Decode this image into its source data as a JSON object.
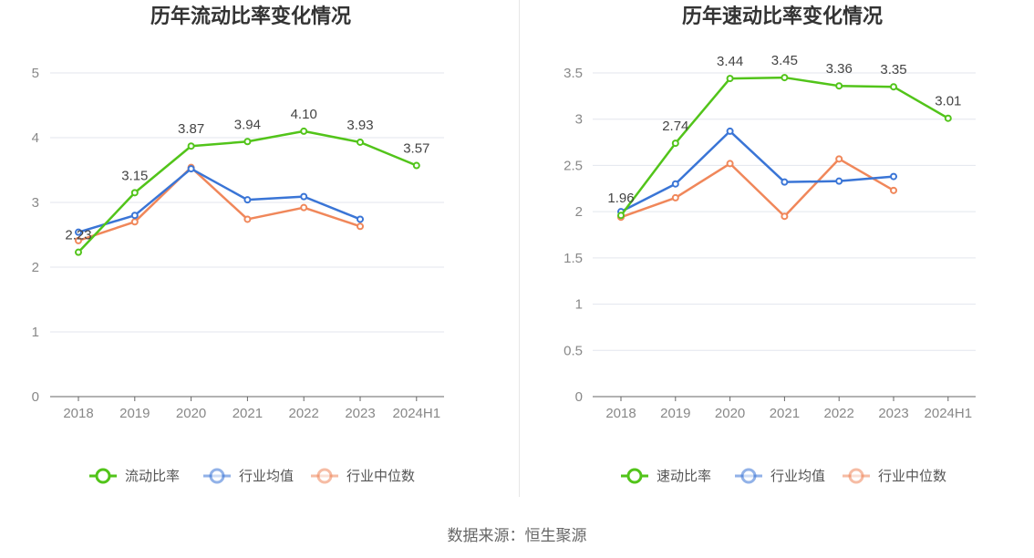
{
  "source_text": "数据来源：恒生聚源",
  "chart_data": [
    {
      "type": "line",
      "title": "历年流动比率变化情况",
      "categories": [
        "2018",
        "2019",
        "2020",
        "2021",
        "2022",
        "2023",
        "2024H1"
      ],
      "ylim": [
        0,
        5
      ],
      "yticks": [
        0,
        1,
        2,
        3,
        4,
        5
      ],
      "ytick_labels": [
        "0",
        "1",
        "2",
        "3",
        "4",
        "5"
      ],
      "grid": true,
      "legend_position": "bottom",
      "series": [
        {
          "name": "流动比率",
          "color": "#52c41a",
          "values": [
            2.23,
            3.15,
            3.87,
            3.94,
            4.1,
            3.93,
            3.57
          ],
          "labels": [
            "2.23",
            "3.15",
            "3.87",
            "3.94",
            "4.10",
            "3.93",
            "3.57"
          ],
          "show_labels": true
        },
        {
          "name": "行业均值",
          "color": "#3a75d6",
          "values": [
            2.54,
            2.8,
            3.52,
            3.04,
            3.09,
            2.74,
            null
          ],
          "show_labels": false
        },
        {
          "name": "行业中位数",
          "color": "#f0875a",
          "values": [
            2.41,
            2.7,
            3.54,
            2.74,
            2.92,
            2.63,
            null
          ],
          "show_labels": false
        }
      ]
    },
    {
      "type": "line",
      "title": "历年速动比率变化情况",
      "categories": [
        "2018",
        "2019",
        "2020",
        "2021",
        "2022",
        "2023",
        "2024H1"
      ],
      "ylim": [
        0,
        3.5
      ],
      "yticks": [
        0,
        0.5,
        1,
        1.5,
        2,
        2.5,
        3,
        3.5
      ],
      "ytick_labels": [
        "0",
        "0.5",
        "1",
        "1.5",
        "2",
        "2.5",
        "3",
        "3.5"
      ],
      "grid": true,
      "legend_position": "bottom",
      "series": [
        {
          "name": "速动比率",
          "color": "#52c41a",
          "values": [
            1.96,
            2.74,
            3.44,
            3.45,
            3.36,
            3.35,
            3.01
          ],
          "labels": [
            "1.96",
            "2.74",
            "3.44",
            "3.45",
            "3.36",
            "3.35",
            "3.01"
          ],
          "show_labels": true
        },
        {
          "name": "行业均值",
          "color": "#3a75d6",
          "values": [
            2.0,
            2.3,
            2.87,
            2.32,
            2.33,
            2.38,
            null
          ],
          "show_labels": false
        },
        {
          "name": "行业中位数",
          "color": "#f0875a",
          "values": [
            1.94,
            2.15,
            2.52,
            1.95,
            2.57,
            2.23,
            null
          ],
          "show_labels": false
        }
      ]
    }
  ]
}
